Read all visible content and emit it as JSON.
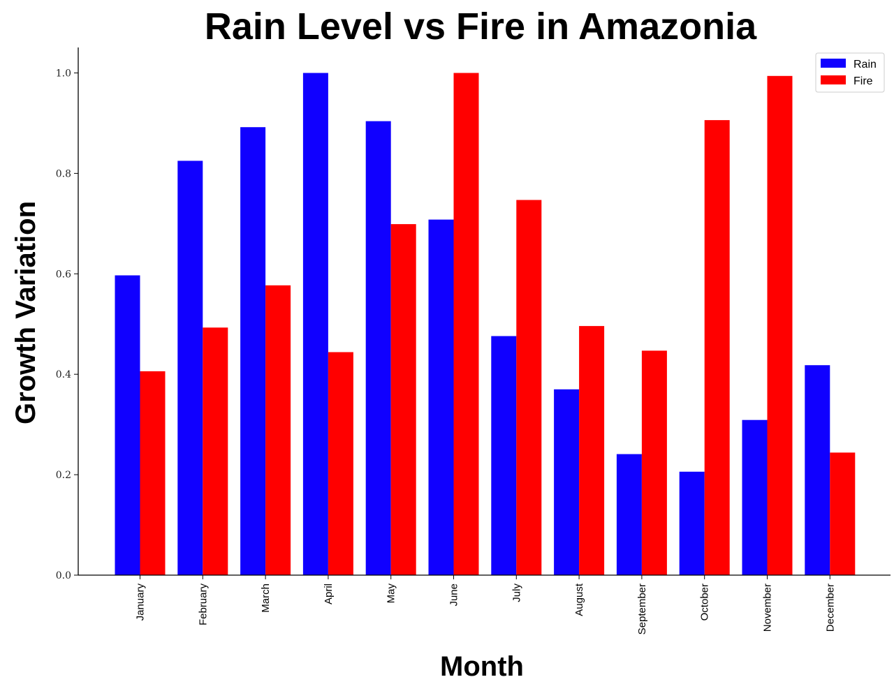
{
  "chart_data": {
    "type": "bar",
    "title": "Rain Level vs Fire in Amazonia",
    "xlabel": "Month",
    "ylabel": "Growth Variation",
    "ylim": [
      0,
      1.05
    ],
    "yticks": [
      "0.0",
      "0.2",
      "0.4",
      "0.6",
      "0.8",
      "1.0"
    ],
    "categories": [
      "January",
      "February",
      "March",
      "April",
      "May",
      "June",
      "July",
      "August",
      "September",
      "October",
      "November",
      "December"
    ],
    "series": [
      {
        "name": "Rain",
        "color": "#1000ff",
        "values": [
          0.597,
          0.825,
          0.892,
          1.0,
          0.904,
          0.708,
          0.476,
          0.37,
          0.241,
          0.206,
          0.309,
          0.418
        ]
      },
      {
        "name": "Fire",
        "color": "#ff0000",
        "values": [
          0.406,
          0.493,
          0.577,
          0.444,
          0.699,
          1.0,
          0.747,
          0.496,
          0.447,
          0.906,
          0.994,
          0.244
        ]
      }
    ],
    "legend_position": "top-right",
    "grid": false
  }
}
